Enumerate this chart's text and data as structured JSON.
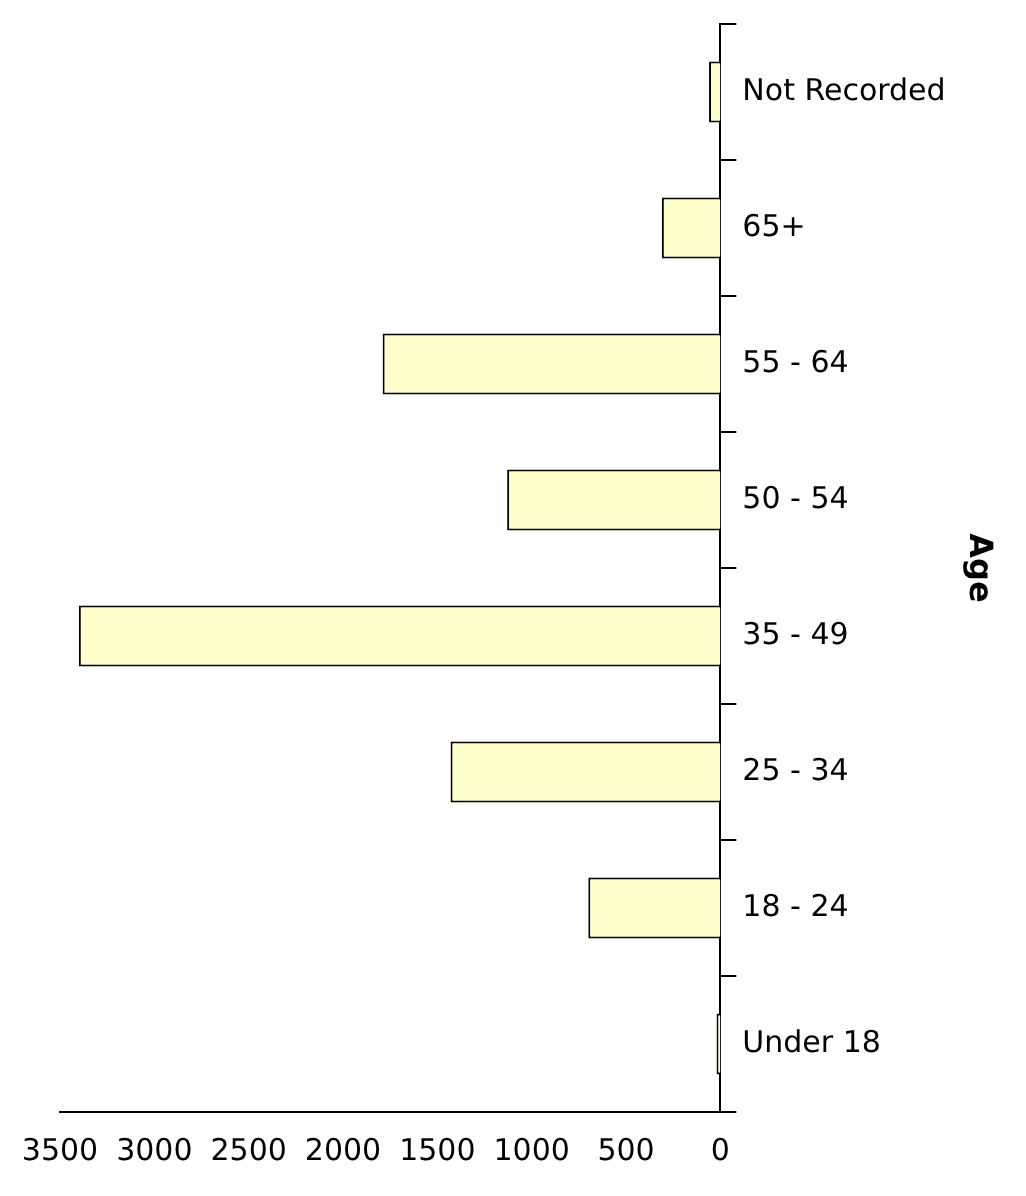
{
  "chart_data": {
    "type": "bar",
    "orientation": "horizontal",
    "ylabel": "Age",
    "categories": [
      "Not Recorded",
      "65+",
      "55 - 64",
      "50 - 54",
      "35 - 49",
      "25 - 34",
      "18 - 24",
      "Under 18"
    ],
    "values": [
      60,
      310,
      1790,
      1130,
      3400,
      1430,
      700,
      20
    ],
    "color": "#ffffcc",
    "xlim": [
      3500,
      0
    ],
    "xticks": [
      0,
      500,
      1000,
      1500,
      2000,
      2500,
      3000,
      3500
    ],
    "grid": false,
    "legend": false
  }
}
